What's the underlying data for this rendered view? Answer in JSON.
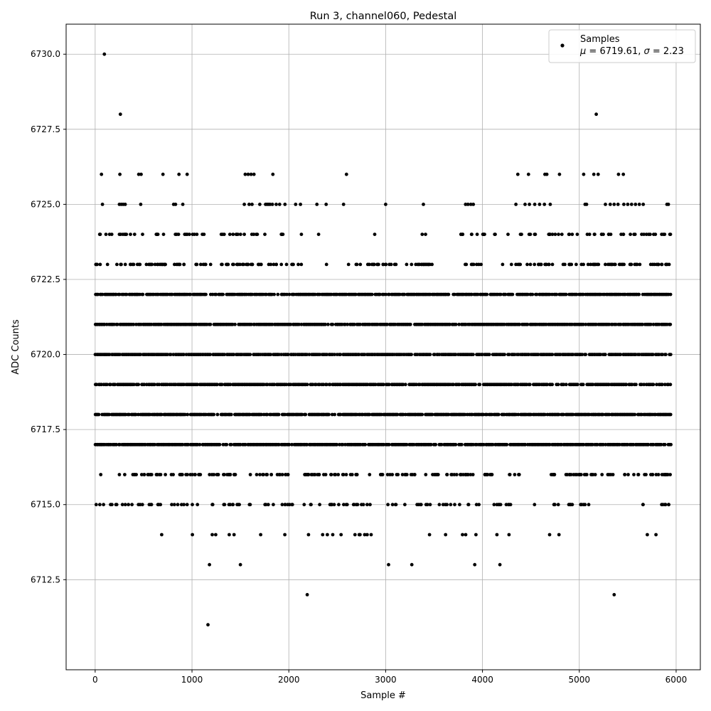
{
  "chart_data": {
    "type": "scatter",
    "title": "Run 3, channel060, Pedestal",
    "xlabel": "Sample #",
    "ylabel": "ADC Counts",
    "xlim": [
      -300,
      6250
    ],
    "ylim": [
      6709.5,
      6731.0
    ],
    "xticks": [
      0,
      1000,
      2000,
      3000,
      4000,
      5000,
      6000
    ],
    "xtick_labels": [
      "0",
      "1000",
      "2000",
      "3000",
      "4000",
      "5000",
      "6000"
    ],
    "yticks": [
      6712.5,
      6715.0,
      6717.5,
      6720.0,
      6722.5,
      6725.0,
      6727.5,
      6730.0
    ],
    "ytick_labels": [
      "6712.5",
      "6715.0",
      "6717.5",
      "6720.0",
      "6722.5",
      "6725.0",
      "6727.5",
      "6730.0"
    ],
    "grid": true,
    "legend": {
      "position": "top-right",
      "series_name": "Samples",
      "stats": {
        "mu_symbol": "μ",
        "mu_value": "6719.61",
        "sigma_symbol": "σ",
        "sigma_value": "2.23"
      }
    },
    "series": [
      {
        "name": "Samples",
        "color": "#000000",
        "n_samples": 5950,
        "mean": 6719.61,
        "std": 2.23,
        "levels": [
          6717,
          6718,
          6719,
          6720,
          6721,
          6722
        ],
        "level_x_range": [
          0,
          5950
        ],
        "outliers": [
          [
            95,
            6730
          ],
          [
            260,
            6728
          ],
          [
            5175,
            6728
          ],
          [
            65,
            6726
          ],
          [
            255,
            6726
          ],
          [
            450,
            6726
          ],
          [
            475,
            6726
          ],
          [
            700,
            6726
          ],
          [
            865,
            6726
          ],
          [
            950,
            6726
          ],
          [
            1550,
            6726
          ],
          [
            1580,
            6726
          ],
          [
            1610,
            6726
          ],
          [
            1640,
            6726
          ],
          [
            1835,
            6726
          ],
          [
            2595,
            6726
          ],
          [
            4365,
            6726
          ],
          [
            4475,
            6726
          ],
          [
            4645,
            6726
          ],
          [
            4665,
            6726
          ],
          [
            4795,
            6726
          ],
          [
            5045,
            6726
          ],
          [
            5150,
            6726
          ],
          [
            5195,
            6726
          ],
          [
            5405,
            6726
          ],
          [
            5455,
            6726
          ],
          [
            75,
            6725
          ],
          [
            250,
            6725
          ],
          [
            270,
            6725
          ],
          [
            290,
            6725
          ],
          [
            310,
            6725
          ],
          [
            470,
            6725
          ],
          [
            810,
            6725
          ],
          [
            830,
            6725
          ],
          [
            905,
            6725
          ],
          [
            1540,
            6725
          ],
          [
            1590,
            6725
          ],
          [
            1620,
            6725
          ],
          [
            1700,
            6725
          ],
          [
            1760,
            6725
          ],
          [
            1775,
            6725
          ],
          [
            1790,
            6725
          ],
          [
            1805,
            6725
          ],
          [
            1830,
            6725
          ],
          [
            1870,
            6725
          ],
          [
            1905,
            6725
          ],
          [
            1960,
            6725
          ],
          [
            2070,
            6725
          ],
          [
            2120,
            6725
          ],
          [
            2290,
            6725
          ],
          [
            2385,
            6725
          ],
          [
            2565,
            6725
          ],
          [
            3000,
            6725
          ],
          [
            3390,
            6725
          ],
          [
            3825,
            6725
          ],
          [
            3850,
            6725
          ],
          [
            3880,
            6725
          ],
          [
            3905,
            6725
          ],
          [
            4345,
            6725
          ],
          [
            4440,
            6725
          ],
          [
            4485,
            6725
          ],
          [
            4540,
            6725
          ],
          [
            4590,
            6725
          ],
          [
            4640,
            6725
          ],
          [
            4700,
            6725
          ],
          [
            5060,
            6725
          ],
          [
            5075,
            6725
          ],
          [
            5270,
            6725
          ],
          [
            5320,
            6725
          ],
          [
            5360,
            6725
          ],
          [
            5400,
            6725
          ],
          [
            5460,
            6725
          ],
          [
            5500,
            6725
          ],
          [
            5540,
            6725
          ],
          [
            5580,
            6725
          ],
          [
            5620,
            6725
          ],
          [
            5660,
            6725
          ],
          [
            5905,
            6725
          ],
          [
            5920,
            6725
          ],
          [
            1180,
            6713
          ],
          [
            1500,
            6713
          ],
          [
            3030,
            6713
          ],
          [
            3270,
            6713
          ],
          [
            3920,
            6713
          ],
          [
            4180,
            6713
          ],
          [
            2190,
            6712
          ],
          [
            5360,
            6712
          ],
          [
            1165,
            6711
          ]
        ],
        "sparse_levels": [
          {
            "value": 6724,
            "density": 0.35,
            "segments": [
              [
                0,
                200
              ],
              [
                200,
                500
              ],
              [
                620,
                900
              ],
              [
                900,
                1200
              ],
              [
                1300,
                1950
              ],
              [
                2100,
                2130
              ],
              [
                2300,
                2310
              ],
              [
                2880,
                2890
              ],
              [
                3370,
                3450
              ],
              [
                3750,
                4000
              ],
              [
                4000,
                4200
              ],
              [
                4260,
                4270
              ],
              [
                4380,
                4500
              ],
              [
                4520,
                5000
              ],
              [
                5000,
                5950
              ]
            ]
          },
          {
            "value": 6723,
            "density": 0.5,
            "segments": [
              [
                0,
                1200
              ],
              [
                1300,
                2200
              ],
              [
                2380,
                2390
              ],
              [
                2550,
                3500
              ],
              [
                3800,
                4000
              ],
              [
                4200,
                5950
              ]
            ]
          },
          {
            "value": 6716,
            "density": 0.5,
            "segments": [
              [
                40,
                60
              ],
              [
                230,
                1100
              ],
              [
                1150,
                2000
              ],
              [
                2150,
                3950
              ],
              [
                4000,
                4400
              ],
              [
                4700,
                5950
              ]
            ]
          },
          {
            "value": 6715,
            "density": 0.3,
            "segments": [
              [
                0,
                1100
              ],
              [
                1200,
                2300
              ],
              [
                2300,
                3500
              ],
              [
                3500,
                4300
              ],
              [
                4500,
                5100
              ],
              [
                5650,
                5950
              ]
            ]
          },
          {
            "value": 6714,
            "density": 0.25,
            "segments": [
              [
                660,
                720
              ],
              [
                1000,
                1030
              ],
              [
                1160,
                1250
              ],
              [
                1380,
                1460
              ],
              [
                1680,
                1730
              ],
              [
                1940,
                2000
              ],
              [
                2160,
                2220
              ],
              [
                2330,
                2480
              ],
              [
                2530,
                2860
              ],
              [
                3450,
                3460
              ],
              [
                3600,
                3660
              ],
              [
                3790,
                3880
              ],
              [
                3930,
                3950
              ],
              [
                4110,
                4160
              ],
              [
                4260,
                4280
              ],
              [
                4690,
                4700
              ],
              [
                4780,
                4790
              ],
              [
                5690,
                5710
              ],
              [
                5790,
                5800
              ]
            ]
          }
        ]
      }
    ]
  }
}
